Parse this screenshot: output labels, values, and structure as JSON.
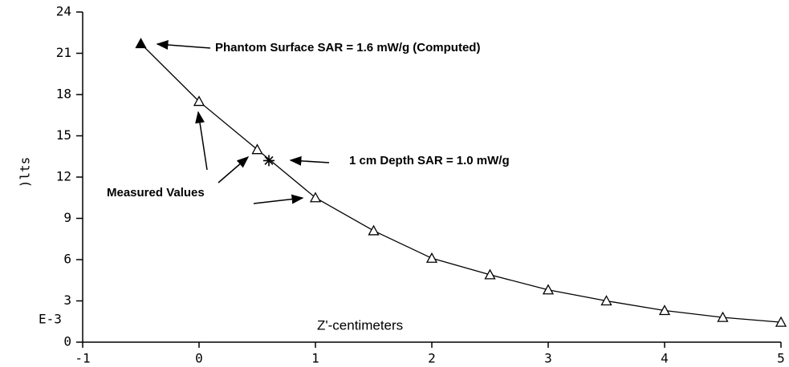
{
  "chart_data": {
    "type": "line",
    "y_label": ")lts",
    "x_label": "Z'-centimeters",
    "y_multiplier": "E-3",
    "x": [
      0,
      0.5,
      1,
      1.5,
      2,
      2.5,
      3,
      3.5,
      4,
      4.5,
      5
    ],
    "values": [
      17.5,
      14.0,
      10.5,
      8.1,
      6.1,
      4.9,
      3.8,
      3.0,
      2.3,
      1.8,
      1.45
    ],
    "computed_point": {
      "x": -0.5,
      "y": 21.7
    },
    "depth_point": {
      "x": 0.6,
      "y": 13.2
    },
    "color": "#000000",
    "xlim": [
      -1,
      5
    ],
    "xticks": [
      -1,
      0,
      1,
      2,
      3,
      4,
      5
    ],
    "ylim": [
      0,
      24
    ],
    "yticks": [
      0,
      3,
      6,
      9,
      12,
      15,
      18,
      21,
      24
    ],
    "annotations": {
      "computed": "Phantom Surface SAR = 1.6 mW/g (Computed)",
      "depth": "1 cm Depth SAR = 1.0 mW/g",
      "measured": "Measured Values"
    }
  }
}
